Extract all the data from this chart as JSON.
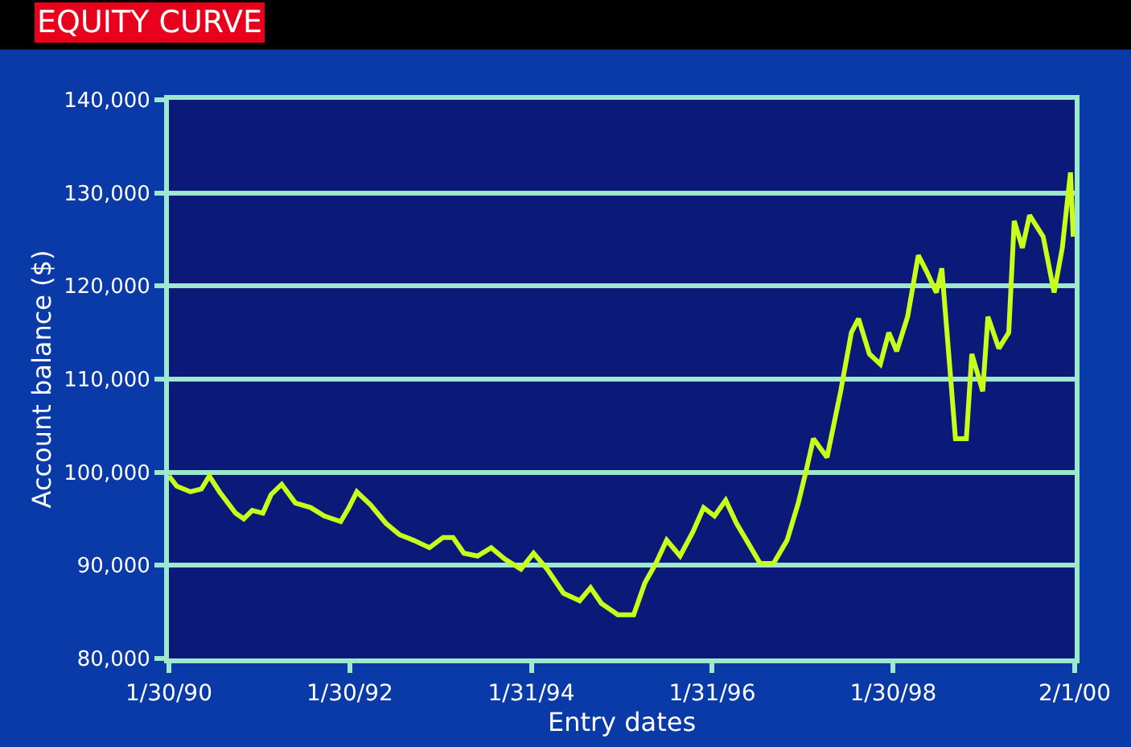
{
  "chart_data": {
    "type": "line",
    "title": "EQUITY CURVE",
    "xlabel": "Entry dates",
    "ylabel": "Account balance ($)",
    "x": [
      "1990-01-30",
      "1990-03-03",
      "1990-04-27",
      "1990-06-10",
      "1990-07-12",
      "1990-08-22",
      "1990-10-26",
      "1990-11-28",
      "1991-01-01",
      "1991-02-13",
      "1991-03-18",
      "1991-04-30",
      "1991-06-24",
      "1991-08-25",
      "1991-10-19",
      "1991-12-24",
      "1992-01-26",
      "1992-02-27",
      "1992-04-22",
      "1992-06-24",
      "1992-08-17",
      "1992-10-12",
      "1992-12-16",
      "1993-02-09",
      "1993-03-21",
      "1993-05-04",
      "1993-06-28",
      "1993-08-22",
      "1993-10-15",
      "1993-12-20",
      "1994-02-09",
      "1994-04-05",
      "1994-06-10",
      "1994-08-14",
      "1994-09-27",
      "1994-11-10",
      "1995-01-15",
      "1995-03-20",
      "1995-05-04",
      "1995-06-17",
      "1995-07-31",
      "1995-09-23",
      "1995-11-14",
      "1995-12-27",
      "1996-02-09",
      "1996-03-25",
      "1996-05-08",
      "1996-06-28",
      "1996-08-11",
      "1996-10-04",
      "1996-11-28",
      "1997-01-12",
      "1997-02-13",
      "1997-03-14",
      "1997-05-08",
      "1997-07-02",
      "1997-08-14",
      "1997-09-12",
      "1997-10-26",
      "1997-12-09",
      "1998-01-12",
      "1998-02-13",
      "1998-03-29",
      "1998-05-11",
      "1998-06-13",
      "1998-07-23",
      "1998-08-14",
      "1998-09-16",
      "1998-10-08",
      "1998-11-21",
      "1998-12-13",
      "1999-01-26",
      "1999-02-16",
      "1999-04-01",
      "1999-05-11",
      "1999-06-02",
      "1999-07-05",
      "1999-08-03",
      "1999-09-27",
      "1999-11-10",
      "1999-12-13",
      "2000-01-15",
      "2000-01-26"
    ],
    "series": [
      {
        "color": "#c8ff1a",
        "values": [
          99600,
          98500,
          97900,
          98200,
          99600,
          97900,
          95600,
          95000,
          95900,
          95600,
          97600,
          98700,
          96700,
          96200,
          95300,
          94700,
          96200,
          97900,
          96500,
          94500,
          93300,
          92700,
          91900,
          93000,
          93000,
          91300,
          91000,
          91900,
          90700,
          89600,
          91300,
          89600,
          87000,
          86200,
          87600,
          85900,
          84700,
          84700,
          88100,
          90200,
          92700,
          91000,
          93600,
          96200,
          95300,
          97000,
          94500,
          92200,
          90200,
          90200,
          92700,
          96700,
          100200,
          103600,
          101600,
          108700,
          115000,
          116500,
          112700,
          111600,
          115000,
          113000,
          116700,
          123300,
          121600,
          119300,
          121900,
          111000,
          103600,
          103600,
          112700,
          108700,
          116700,
          113300,
          115000,
          127000,
          124100,
          127600,
          125300,
          119300,
          124100,
          132200,
          125300
        ]
      }
    ],
    "xlim": [
      "1990-01-30",
      "2000-02-01"
    ],
    "xticks": [
      {
        "value": "1990-01-30",
        "label": "1/30/90"
      },
      {
        "value": "1992-01-30",
        "label": "1/30/92"
      },
      {
        "value": "1994-01-31",
        "label": "1/31/94"
      },
      {
        "value": "1996-01-31",
        "label": "1/31/96"
      },
      {
        "value": "1998-01-30",
        "label": "1/30/98"
      },
      {
        "value": "2000-02-01",
        "label": "2/1/00"
      }
    ],
    "ylim": [
      80000,
      140000
    ],
    "yticks": [
      {
        "value": 80000,
        "label": "80,000"
      },
      {
        "value": 90000,
        "label": "90,000"
      },
      {
        "value": 100000,
        "label": "100,000"
      },
      {
        "value": 110000,
        "label": "110,000"
      },
      {
        "value": 120000,
        "label": "120,000"
      },
      {
        "value": 130000,
        "label": "130,000"
      },
      {
        "value": 140000,
        "label": "140,000"
      }
    ],
    "grid": "y",
    "legend": false,
    "marker": "none",
    "line_style": "solid"
  }
}
